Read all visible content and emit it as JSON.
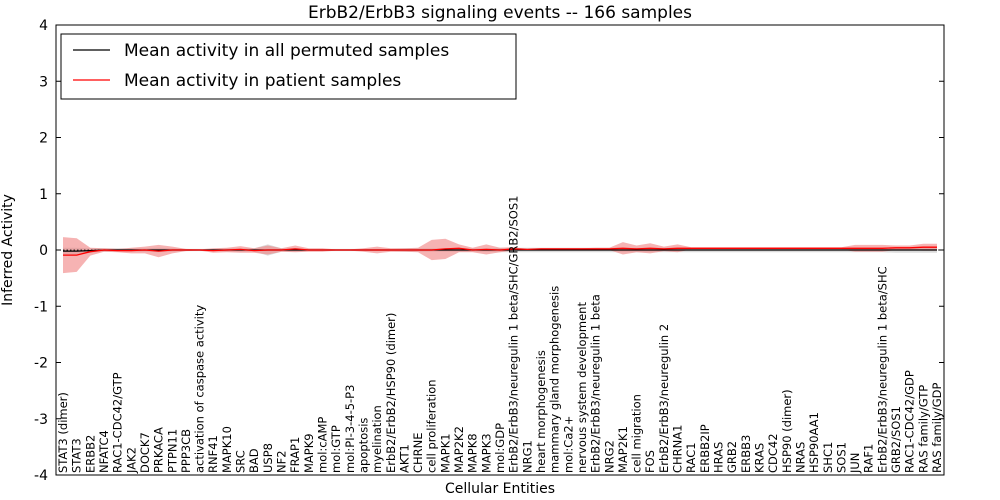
{
  "chart_data": {
    "type": "line",
    "title": "ErbB2/ErbB3 signaling events -- 166 samples",
    "xlabel": "Cellular Entities",
    "ylabel": "Inferred Activity",
    "ylim": [
      -4,
      4
    ],
    "yticks": [
      -4,
      -3,
      -2,
      -1,
      0,
      1,
      2,
      3,
      4
    ],
    "grid": false,
    "legend_position": "top-left",
    "categories": [
      "STAT3 (dimer)",
      "STAT3",
      "ERBB2",
      "NFATC4",
      "RAC1-CDC42/GTP",
      "JAK2",
      "DOCK7",
      "PRKACA",
      "PTPN11",
      "PPP3CB",
      "activation of caspase activity",
      "RNF41",
      "MAPK10",
      "SRC",
      "BAD",
      "USP8",
      "NF2",
      "FRAP1",
      "MAPK9",
      "mol:cAMP",
      "mol:GTP",
      "mol:PI-3-4-5-P3",
      "apoptosis",
      "myelination",
      "ErbB2/ErbB2/HSP90 (dimer)",
      "AKT1",
      "CHRNE",
      "cell proliferation",
      "MAPK1",
      "MAP2K2",
      "MAPK8",
      "MAPK3",
      "mol:GDP",
      "ErbB2/ErbB3/neuregulin 1 beta/SHC/GRB2/SOS1",
      "NRG1",
      "heart morphogenesis",
      "mammary gland morphogenesis",
      "mol:Ca2+",
      "nervous system development",
      "ErbB2/ErbB3/neuregulin 1 beta",
      "NRG2",
      "MAP2K1",
      "cell migration",
      "FOS",
      "ErbB2/ErbB3/neuregulin 2",
      "CHRNA1",
      "RAC1",
      "ERBB2IP",
      "HRAS",
      "GRB2",
      "ERBB3",
      "KRAS",
      "CDC42",
      "HSP90 (dimer)",
      "NRAS",
      "HSP90AA1",
      "SHC1",
      "SOS1",
      "JUN",
      "RAF1",
      "ErbB2/ErbB3/neuregulin 1 beta/SHC",
      "GRB2/SOS1",
      "RAC1-CDC42/GDP",
      "RAS family/GTP",
      "RAS family/GDP"
    ],
    "series": [
      {
        "name": "Mean activity in all permuted samples",
        "color": "#000000",
        "band_color": "#b0b0b0",
        "values": [
          -0.02,
          -0.02,
          -0.01,
          0,
          0,
          0,
          0,
          0,
          0,
          0,
          0,
          0,
          0,
          0,
          0,
          0,
          0,
          0,
          0,
          0,
          0,
          0,
          0,
          0,
          0,
          0,
          0,
          0,
          0,
          0,
          0,
          0,
          0,
          0,
          0,
          0,
          0,
          0,
          0,
          0,
          0,
          0,
          0,
          0,
          0,
          0,
          0,
          0,
          0,
          0,
          0,
          0,
          0,
          0,
          0,
          0,
          0,
          0,
          0,
          0,
          0,
          0,
          0,
          0,
          0
        ],
        "band": [
          0.06,
          0.06,
          0.04,
          0.03,
          0.03,
          0.03,
          0.03,
          0.04,
          0.03,
          0.02,
          0.02,
          0.02,
          0.03,
          0.03,
          0.03,
          0.1,
          0.03,
          0.03,
          0.02,
          0.02,
          0.02,
          0.02,
          0.02,
          0.02,
          0.02,
          0.03,
          0.03,
          0.03,
          0.03,
          0.03,
          0.03,
          0.03,
          0.04,
          0.04,
          0.04,
          0.04,
          0.04,
          0.04,
          0.04,
          0.04,
          0.04,
          0.04,
          0.04,
          0.04,
          0.04,
          0.04,
          0.04,
          0.04,
          0.04,
          0.04,
          0.04,
          0.04,
          0.04,
          0.04,
          0.04,
          0.04,
          0.04,
          0.04,
          0.04,
          0.04,
          0.04,
          0.05,
          0.05,
          0.05,
          0.05
        ]
      },
      {
        "name": "Mean activity in patient samples",
        "color": "#ff0000",
        "band_color": "#f08080",
        "values": [
          -0.09,
          -0.09,
          -0.03,
          0,
          -0.01,
          -0.01,
          0,
          -0.02,
          0,
          0,
          0,
          -0.01,
          0,
          0.01,
          -0.01,
          0,
          0,
          0.02,
          0,
          0,
          0,
          0,
          0,
          0,
          0,
          0,
          0,
          0,
          0.02,
          0.03,
          0,
          0.01,
          0,
          0.02,
          0.01,
          0.02,
          0.02,
          0.02,
          0.02,
          0.02,
          0.02,
          0.03,
          0.02,
          0.03,
          0.02,
          0.03,
          0.03,
          0.03,
          0.03,
          0.03,
          0.03,
          0.03,
          0.03,
          0.03,
          0.03,
          0.03,
          0.03,
          0.03,
          0.03,
          0.03,
          0.03,
          0.04,
          0.04,
          0.05,
          0.05
        ],
        "band": [
          0.32,
          0.3,
          0.07,
          0.03,
          0.03,
          0.05,
          0.06,
          0.11,
          0.06,
          0.02,
          0.01,
          0.04,
          0.04,
          0.06,
          0.04,
          0.08,
          0.03,
          0.06,
          0.03,
          0.03,
          0.01,
          0.01,
          0.03,
          0.06,
          0.03,
          0.03,
          0.04,
          0.18,
          0.18,
          0.07,
          0.04,
          0.09,
          0.04,
          0.03,
          0.01,
          0.01,
          0.01,
          0.01,
          0.01,
          0.02,
          0.02,
          0.11,
          0.06,
          0.09,
          0.04,
          0.07,
          0.02,
          0.02,
          0.02,
          0.02,
          0.02,
          0.02,
          0.02,
          0.02,
          0.02,
          0.02,
          0.02,
          0.02,
          0.06,
          0.06,
          0.06,
          0.04,
          0.04,
          0.06,
          0.06
        ]
      }
    ]
  }
}
